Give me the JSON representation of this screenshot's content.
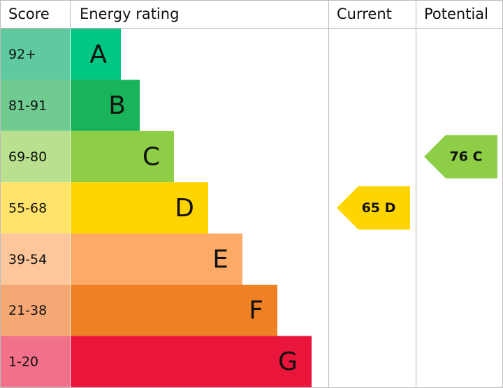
{
  "header": {
    "score": "Score",
    "rating": "Energy rating",
    "current": "Current",
    "potential": "Potential"
  },
  "bands": [
    {
      "score": "92+",
      "letter": "A"
    },
    {
      "score": "81-91",
      "letter": "B"
    },
    {
      "score": "69-80",
      "letter": "C"
    },
    {
      "score": "55-68",
      "letter": "D"
    },
    {
      "score": "39-54",
      "letter": "E"
    },
    {
      "score": "21-38",
      "letter": "F"
    },
    {
      "score": "1-20",
      "letter": "G"
    }
  ],
  "current": {
    "value": 65,
    "band": "D"
  },
  "potential": {
    "value": 76,
    "band": "C"
  }
}
